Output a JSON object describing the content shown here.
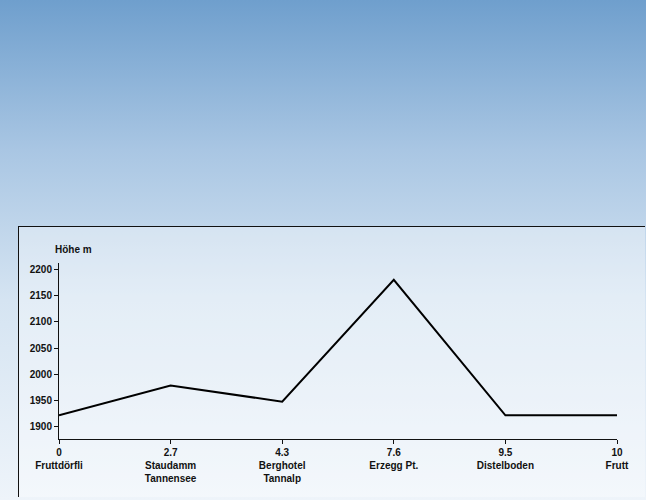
{
  "chart_data": {
    "type": "line",
    "ylabel": "Höhe m",
    "categories": [
      "0\nFruttdörfli",
      "2.7\nStaudamm\nTannensee",
      "4.3\nBerghotel\nTannalp",
      "7.6\nErzegg Pt.",
      "9.5\nDistelboden",
      "10\nFrutt"
    ],
    "values": [
      1922,
      1979,
      1948,
      2180,
      1922,
      1922
    ],
    "color": "#000000",
    "ylim": [
      1877,
      2212
    ],
    "yticks": [
      1900,
      1950,
      2000,
      2050,
      2100,
      2150,
      2200
    ],
    "grid": false
  }
}
